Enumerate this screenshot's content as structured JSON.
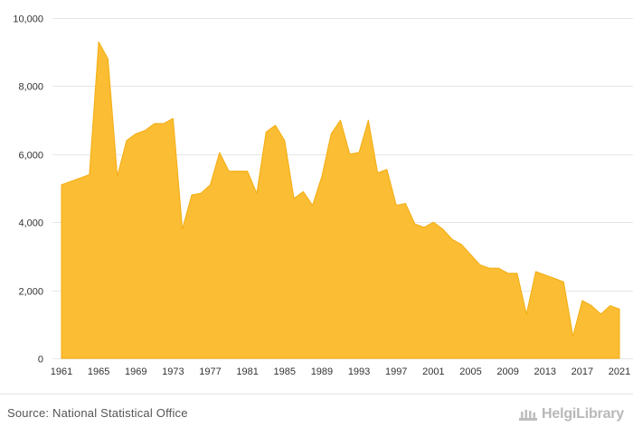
{
  "colors": {
    "area_fill": "#fbbd33",
    "area_stroke": "#f2ad12",
    "grid": "#e6e6e6",
    "text": "#333333"
  },
  "chart_data": {
    "type": "area",
    "title": "",
    "xlabel": "",
    "ylabel": "",
    "ylim": [
      0,
      10000
    ],
    "xlim": [
      1961,
      2021
    ],
    "grid": true,
    "legend": "none",
    "y_ticks": [
      0,
      2000,
      4000,
      6000,
      8000,
      10000
    ],
    "y_tick_labels": [
      "0",
      "2,000",
      "4,000",
      "6,000",
      "8,000",
      "10,000"
    ],
    "x_ticks": [
      1961,
      1965,
      1969,
      1973,
      1977,
      1981,
      1985,
      1989,
      1993,
      1997,
      2001,
      2005,
      2009,
      2013,
      2017,
      2021
    ],
    "x_tick_labels": [
      "1961",
      "1965",
      "1969",
      "1973",
      "1977",
      "1981",
      "1985",
      "1989",
      "1993",
      "1997",
      "2001",
      "2005",
      "2009",
      "2013",
      "2017",
      "2021"
    ],
    "x": [
      1961,
      1962,
      1963,
      1964,
      1965,
      1966,
      1967,
      1968,
      1969,
      1970,
      1971,
      1972,
      1973,
      1974,
      1975,
      1976,
      1977,
      1978,
      1979,
      1980,
      1981,
      1982,
      1983,
      1984,
      1985,
      1986,
      1987,
      1988,
      1989,
      1990,
      1991,
      1992,
      1993,
      1994,
      1995,
      1996,
      1997,
      1998,
      1999,
      2000,
      2001,
      2002,
      2003,
      2004,
      2005,
      2006,
      2007,
      2008,
      2009,
      2010,
      2011,
      2012,
      2013,
      2014,
      2015,
      2016,
      2017,
      2018,
      2019,
      2020,
      2021
    ],
    "series": [
      {
        "values": [
          5100,
          5200,
          5300,
          5400,
          9300,
          8800,
          5350,
          6400,
          6600,
          6700,
          6900,
          6900,
          7050,
          3800,
          4800,
          4850,
          5100,
          6050,
          5500,
          5500,
          5500,
          4850,
          6650,
          6850,
          6400,
          4700,
          4900,
          4500,
          5350,
          6600,
          7000,
          6000,
          6050,
          7000,
          5450,
          5550,
          4500,
          4550,
          3950,
          3850,
          4000,
          3800,
          3500,
          3350,
          3050,
          2750,
          2650,
          2650,
          2500,
          2500,
          1300,
          2550,
          2450,
          2350,
          2250,
          650,
          1700,
          1550,
          1300,
          1550,
          1450
        ]
      }
    ]
  },
  "footer": {
    "source_text": "Source: National Statistical Office",
    "brand_text": "HelgiLibrary"
  }
}
